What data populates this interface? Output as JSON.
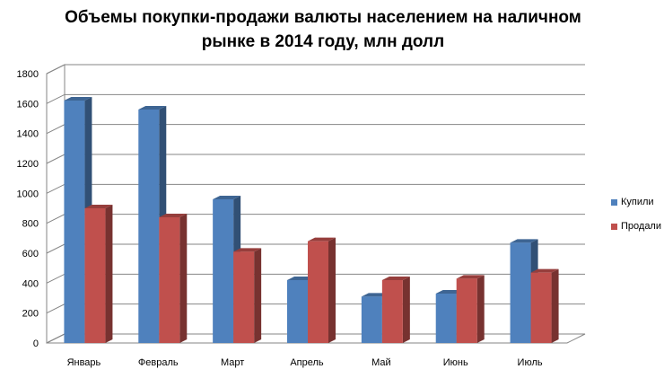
{
  "chart_data": {
    "type": "bar",
    "title": "Объемы покупки-продажи валюты населением на наличном\nрынке в 2014 году, млн долл",
    "xlabel": "",
    "ylabel": "",
    "ylim": [
      0,
      1800
    ],
    "yticks": [
      0,
      200,
      400,
      600,
      800,
      1000,
      1200,
      1400,
      1600,
      1800
    ],
    "categories": [
      "Январь",
      "Февраль",
      "Март",
      "Апрель",
      "Май",
      "Июнь",
      "Июль"
    ],
    "series": [
      {
        "name": "Купили",
        "color": "#4f81bd",
        "values": [
          1620,
          1560,
          960,
          420,
          310,
          330,
          670
        ]
      },
      {
        "name": "Продали",
        "color": "#c0504d",
        "values": [
          900,
          840,
          610,
          680,
          420,
          430,
          470
        ]
      }
    ],
    "grid": true,
    "legend_position": "right",
    "three_d": true
  }
}
